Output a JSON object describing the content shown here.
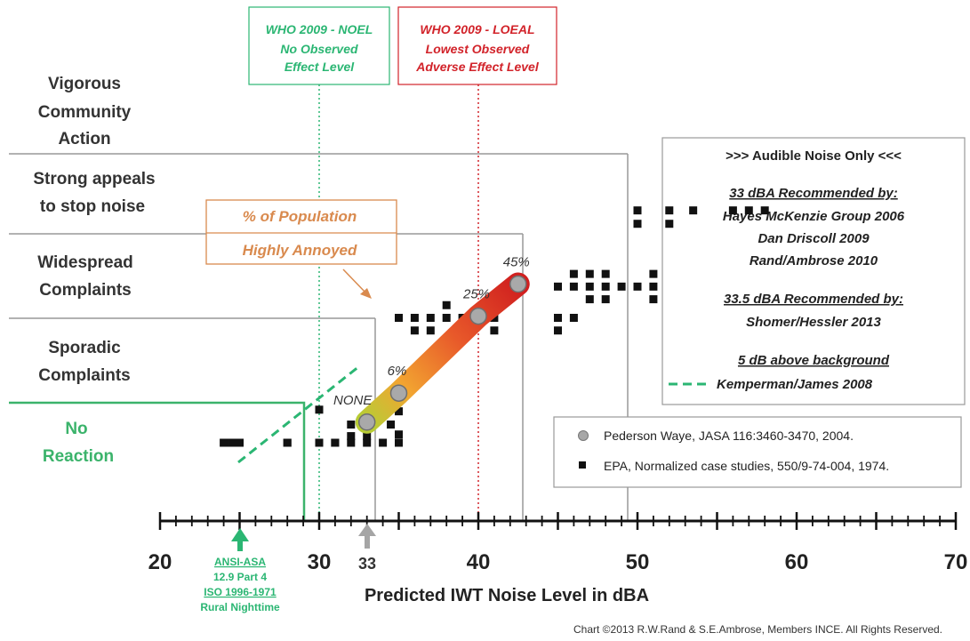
{
  "chart_data": {
    "type": "scatter",
    "xlabel": "Predicted IWT Noise Level in dBA",
    "xlim": [
      20,
      70
    ],
    "x_ticks": [
      "20",
      "30",
      "40",
      "50",
      "60",
      "70"
    ],
    "categories": [
      "Vigorous Community Action",
      "Strong appeals to stop noise",
      "Widespread Complaints",
      "Sporadic Complaints",
      "No Reaction"
    ],
    "category_labels": [
      [
        "Vigorous",
        "Community",
        "Action"
      ],
      [
        "Strong appeals",
        "to stop noise"
      ],
      [
        "Widespread",
        "Complaints"
      ],
      [
        "Sporadic",
        "Complaints"
      ],
      [
        "No",
        "Reaction"
      ]
    ],
    "reference_lines": [
      {
        "id": "noel",
        "x": 30,
        "label": [
          "WHO 2009 - NOEL",
          "No Observed",
          "Effect Level"
        ],
        "color": "#2bb673"
      },
      {
        "id": "loeal",
        "x": 40,
        "label": [
          "WHO 2009 - LOEAL",
          "Lowest Observed",
          "Adverse Effect Level"
        ],
        "color": "#d2232a"
      }
    ],
    "series": [
      {
        "name": "Pederson Waye, JASA 116:3460-3470, 2004.",
        "type": "line",
        "points": [
          {
            "x": 33,
            "level": 3.75,
            "label": "NONE"
          },
          {
            "x": 35,
            "level": 3.4,
            "label": "6%"
          },
          {
            "x": 40,
            "level": 2.48,
            "label": "25%"
          },
          {
            "x": 42.5,
            "level": 2.1,
            "label": "45%"
          }
        ]
      },
      {
        "name": "EPA, Normalized case studies, 550/9-74-004, 1974.",
        "type": "scatter",
        "points": [
          [
            50,
            1.22
          ],
          [
            52,
            1.22
          ],
          [
            53.5,
            1.22
          ],
          [
            56,
            1.22
          ],
          [
            57,
            1.22
          ],
          [
            58,
            1.22
          ],
          [
            50,
            1.38
          ],
          [
            52,
            1.38
          ],
          [
            46,
            1.98
          ],
          [
            47,
            1.98
          ],
          [
            48,
            1.98
          ],
          [
            45,
            2.13
          ],
          [
            46,
            2.13
          ],
          [
            47,
            2.13
          ],
          [
            48,
            2.13
          ],
          [
            49,
            2.13
          ],
          [
            50,
            2.13
          ],
          [
            51,
            2.13
          ],
          [
            47,
            2.28
          ],
          [
            48,
            2.28
          ],
          [
            51,
            2.28
          ],
          [
            51,
            1.98
          ],
          [
            35,
            2.5
          ],
          [
            36,
            2.5
          ],
          [
            37,
            2.5
          ],
          [
            38,
            2.5
          ],
          [
            39,
            2.5
          ],
          [
            40,
            2.5
          ],
          [
            41,
            2.5
          ],
          [
            45,
            2.5
          ],
          [
            46,
            2.5
          ],
          [
            36,
            2.65
          ],
          [
            37,
            2.65
          ],
          [
            39,
            2.65
          ],
          [
            41,
            2.65
          ],
          [
            45,
            2.65
          ],
          [
            38,
            2.35
          ],
          [
            30,
            3.6
          ],
          [
            32,
            3.78
          ],
          [
            34.5,
            3.78
          ],
          [
            35,
            3.62
          ],
          [
            35,
            3.9
          ],
          [
            32,
            3.92
          ],
          [
            33,
            3.92
          ],
          [
            24,
            4.52
          ],
          [
            24.5,
            4.67
          ],
          [
            25,
            4.67
          ],
          [
            24.5,
            4.82
          ],
          [
            25,
            4.82
          ],
          [
            28,
            4.67
          ],
          [
            28,
            4.82
          ],
          [
            30,
            4.67
          ],
          [
            31,
            4.67
          ],
          [
            31,
            4.82
          ],
          [
            32,
            4.67
          ],
          [
            33,
            4.67
          ],
          [
            34,
            4.67
          ],
          [
            35,
            4.67
          ]
        ]
      }
    ],
    "annotations": {
      "population_box": [
        "% of Population",
        "Highly Annoyed"
      ],
      "marker_33": "33",
      "ansi_note": [
        "ANSI-ASA",
        "12.9  Part 4",
        "ISO 1996-1971",
        "Rural Nighttime"
      ]
    },
    "recommendations": {
      "header": ">>> Audible Noise Only <<<",
      "groups": [
        {
          "heading": "33 dBA Recommended by:",
          "names": [
            "Hayes McKenzie Group 2006",
            "Dan Driscoll  2009",
            "Rand/Ambrose 2010"
          ]
        },
        {
          "heading": "33.5 dBA Recommended by:",
          "names": [
            "Shomer/Hessler 2013"
          ]
        },
        {
          "heading": "5 dB above background",
          "names": [
            "Kemperman/James  2008"
          ]
        }
      ]
    },
    "legend_position": "bottom-right",
    "grid": false,
    "copyright": "Chart ©2013  R.W.Rand & S.E.Ambrose,  Members INCE.  All Rights Reserved."
  }
}
